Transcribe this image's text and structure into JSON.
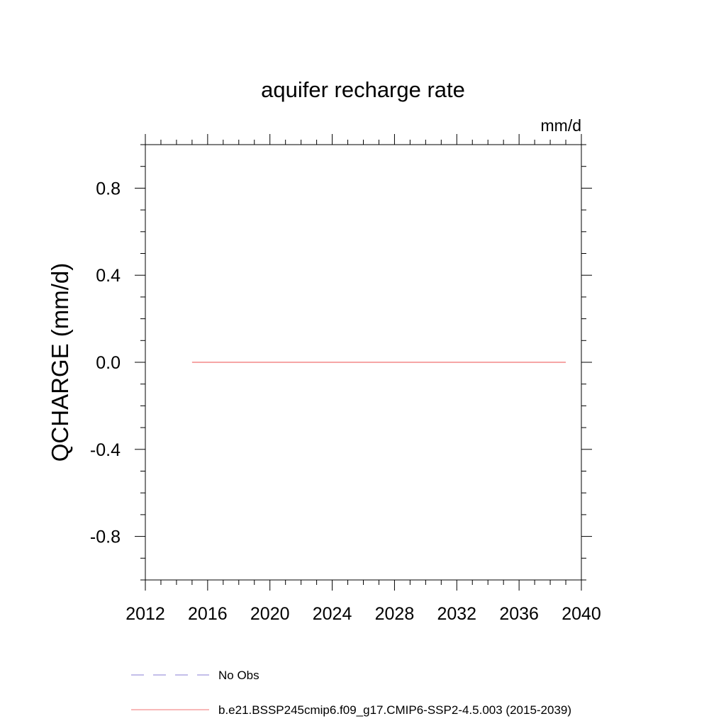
{
  "chart_data": {
    "type": "line",
    "title": "aquifer recharge rate",
    "units_label": "mm/d",
    "ylabel": "QCHARGE  (mm/d)",
    "xlabel": "",
    "xlim": [
      2012,
      2040
    ],
    "ylim": [
      -1.0,
      1.0
    ],
    "x_ticks": [
      2012,
      2016,
      2020,
      2024,
      2028,
      2032,
      2036,
      2040
    ],
    "x_tick_labels": [
      "2012",
      "2016",
      "2020",
      "2024",
      "2028",
      "2032",
      "2036",
      "2040"
    ],
    "y_ticks": [
      0.8,
      0.4,
      0.0,
      -0.4,
      -0.8
    ],
    "y_tick_labels": [
      "0.8",
      "0.4",
      "0.0",
      "-0.4",
      "-0.8"
    ],
    "grid": false,
    "legend_position": "bottom",
    "series": [
      {
        "name": "No Obs",
        "style": "dashed",
        "color": "#8a7fd6",
        "x": [],
        "y": []
      },
      {
        "name": "b.e21.BSSP245cmip6.f09_g17.CMIP6-SSP2-4.5.003 (2015-2039)",
        "style": "solid",
        "color": "#f07070",
        "x": [
          2015,
          2016,
          2017,
          2018,
          2019,
          2020,
          2021,
          2022,
          2023,
          2024,
          2025,
          2026,
          2027,
          2028,
          2029,
          2030,
          2031,
          2032,
          2033,
          2034,
          2035,
          2036,
          2037,
          2038,
          2039
        ],
        "y": [
          0,
          0,
          0,
          0,
          0,
          0,
          0,
          0,
          0,
          0,
          0,
          0,
          0,
          0,
          0,
          0,
          0,
          0,
          0,
          0,
          0,
          0,
          0,
          0,
          0
        ]
      }
    ]
  }
}
